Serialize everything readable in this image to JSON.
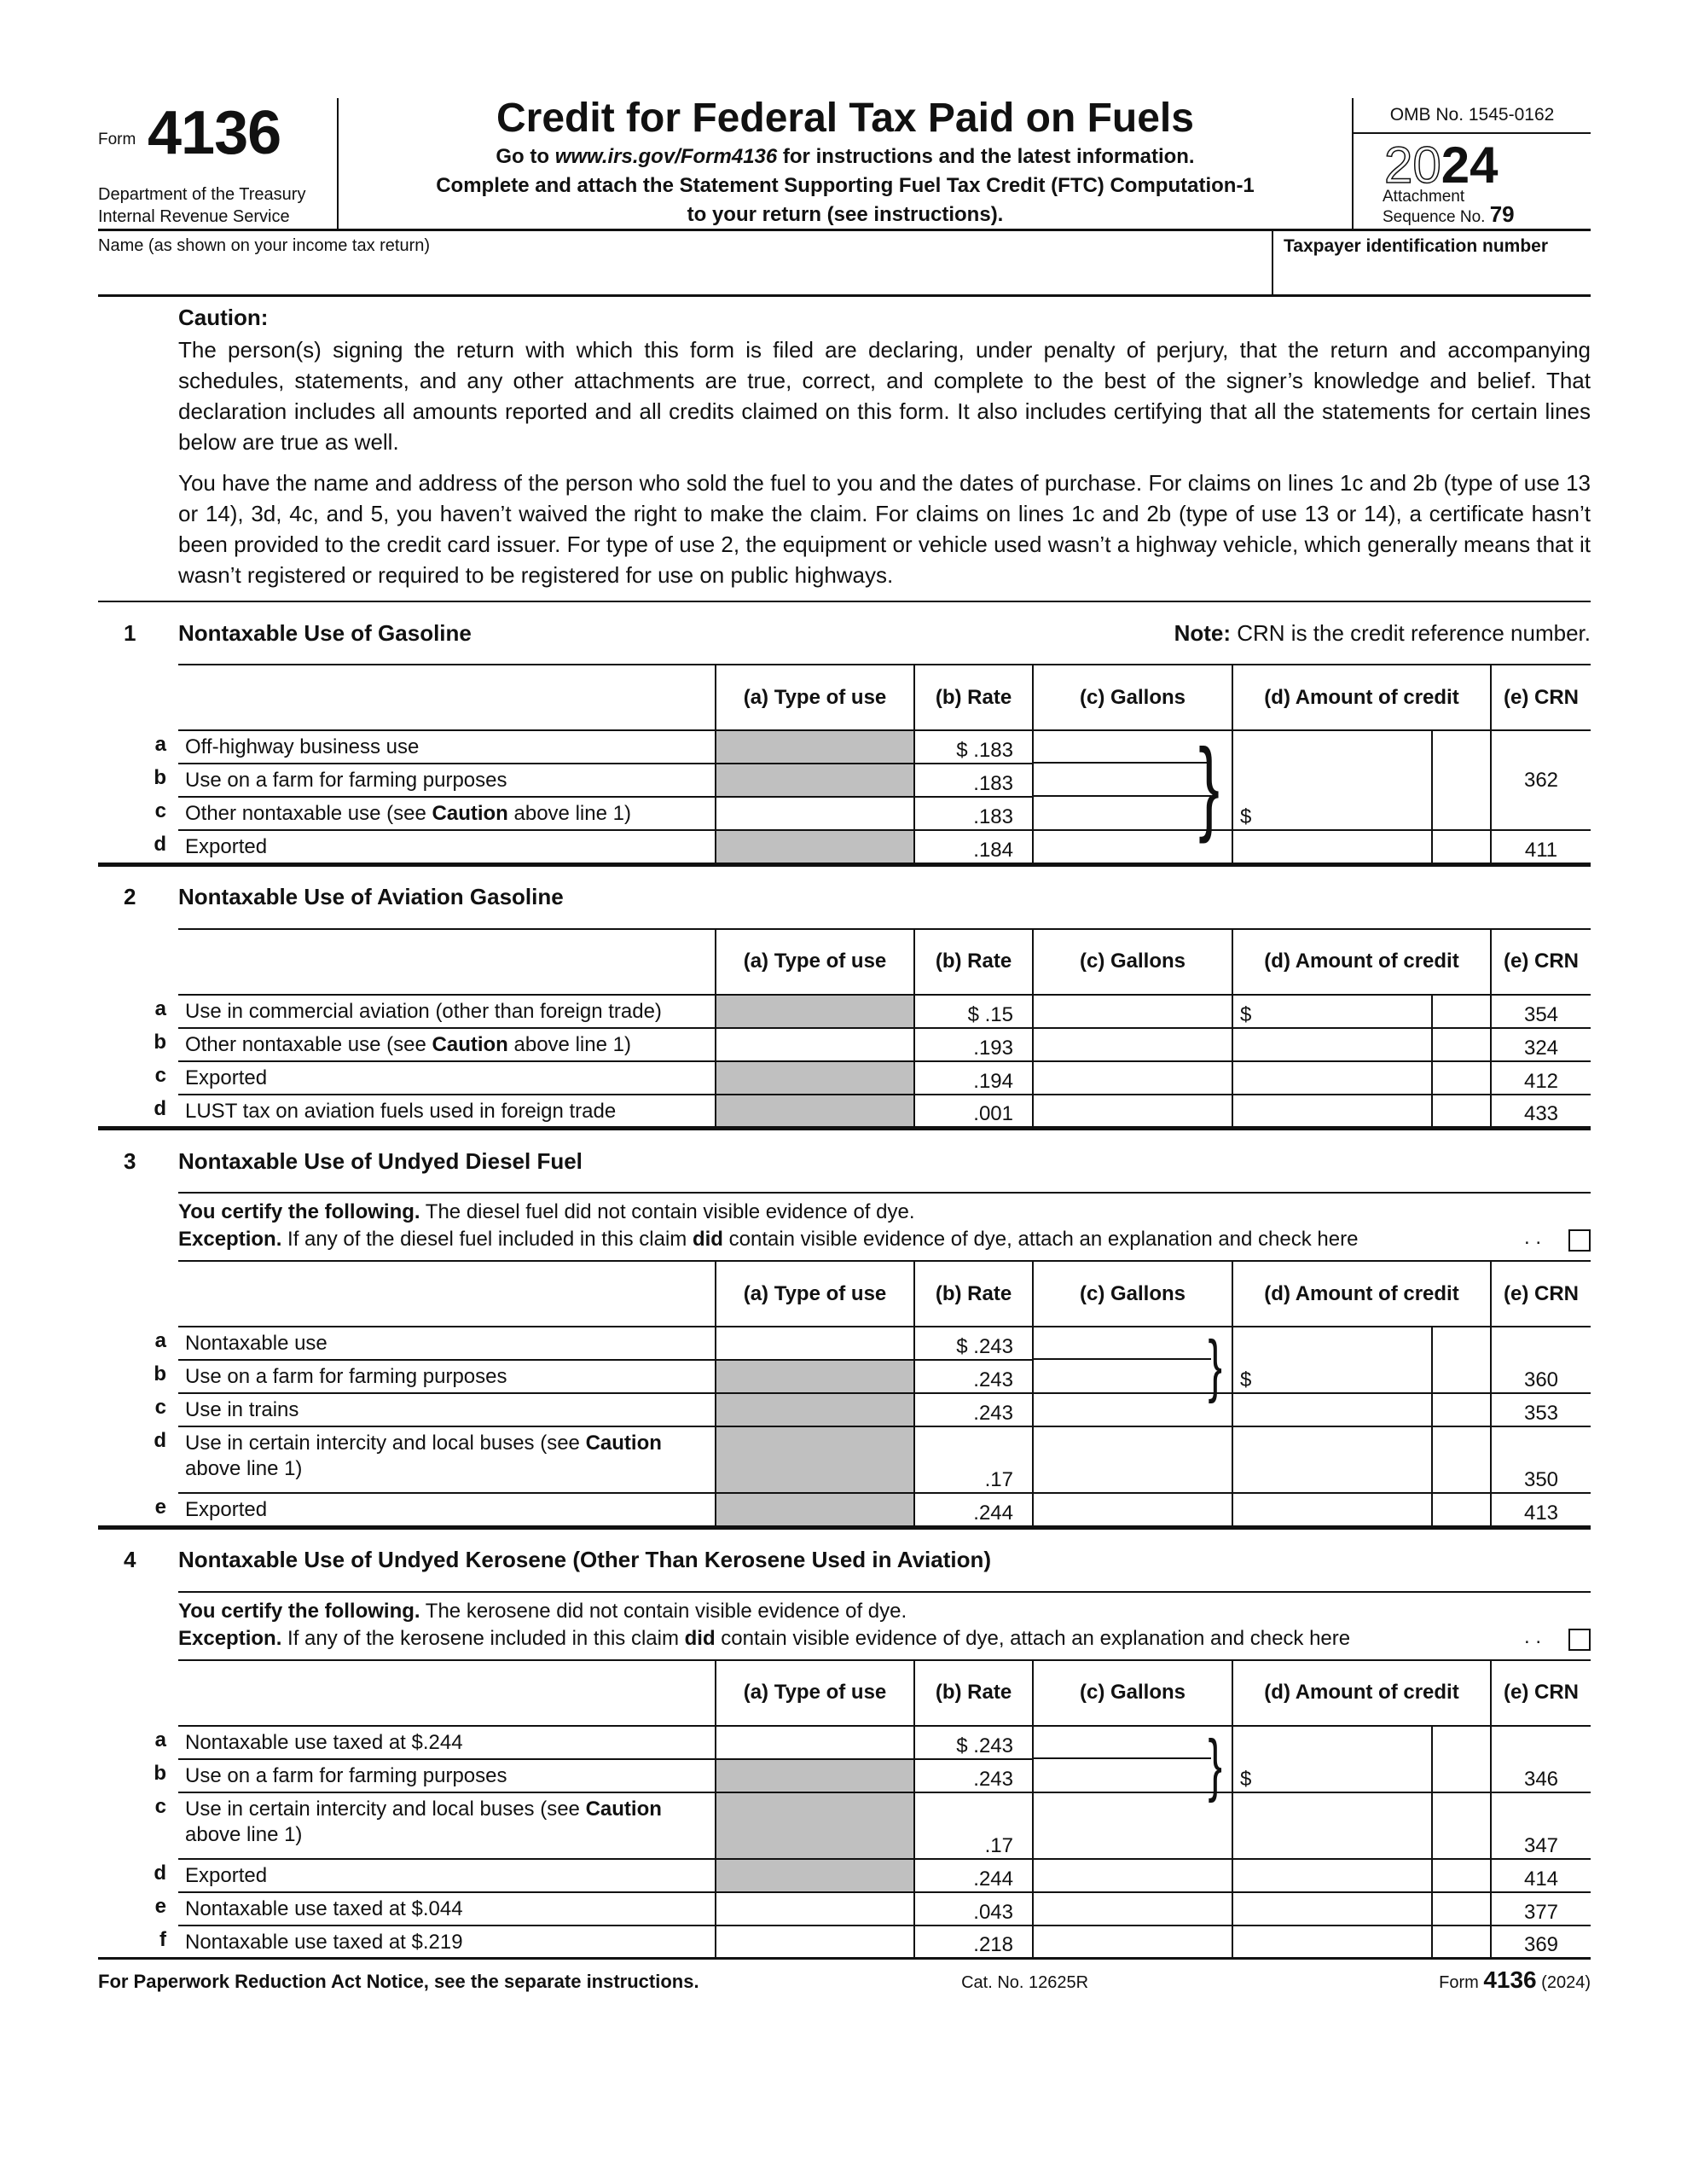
{
  "header": {
    "form_word": "Form",
    "form_number": "4136",
    "dept_line1": "Department of the Treasury",
    "dept_line2": "Internal Revenue Service",
    "title": "Credit for Federal Tax Paid on Fuels",
    "goto_prefix": "Go to ",
    "goto_url": "www.irs.gov/Form4136",
    "goto_suffix": " for instructions and the latest information.",
    "attach_line1": "Complete and attach the Statement Supporting Fuel Tax Credit (FTC) Computation-1",
    "attach_line2": "to your return (see instructions).",
    "omb": "OMB No. 1545-0162",
    "year_outline": "20",
    "year_bold": "24",
    "attachment": "Attachment",
    "sequence_label": "Sequence No.",
    "sequence_no": "79"
  },
  "name_row": {
    "name_label": "Name (as shown on your income tax return)",
    "name_value": "",
    "tin_label": "Taxpayer identification number",
    "tin_value": ""
  },
  "caution": {
    "heading": "Caution:",
    "para1": "The person(s) signing the return with which this form is filed are declaring, under penalty of perjury, that the return and accompanying schedules, statements, and any other attachments are true, correct, and complete to the best of the signer’s knowledge and belief. That declaration includes all amounts reported and all credits claimed on this form. It also includes certifying that all the statements for certain lines below are true as well.",
    "para2": "You have the name and address of the person who sold the fuel to you and the dates of purchase. For claims on lines 1c and 2b (type of use 13 or 14), 3d, 4c, and 5, you haven’t waived the right to make the claim. For claims on lines 1c and 2b (type of use 13 or 14), a certificate hasn’t been provided to the credit card issuer. For type of use 2, the equipment or vehicle used wasn’t a highway vehicle, which generally means that it wasn’t registered or required to be registered for use on public highways."
  },
  "columns": [
    "(a) Type of use",
    "(b) Rate",
    "(c) Gallons",
    "(d) Amount of credit",
    "(e) CRN"
  ],
  "note": {
    "bold": "Note:",
    "text": " CRN is the credit reference number."
  },
  "sections": [
    {
      "number": "1",
      "title": "Nontaxable Use of Gasoline",
      "group": {
        "start": 0,
        "end": 2,
        "crn": "362",
        "crn_align": "middle"
      },
      "rows": [
        {
          "letter": "a",
          "desc": [
            {
              "t": "Off-highway business use"
            }
          ],
          "shaded": true,
          "rate": "$ .183",
          "crn": "362"
        },
        {
          "letter": "b",
          "desc": [
            {
              "t": "Use on a farm for farming purposes"
            }
          ],
          "shaded": true,
          "rate": ".183",
          "crn": "362"
        },
        {
          "letter": "c",
          "desc": [
            {
              "t": "Other nontaxable use (see "
            },
            {
              "t": "Caution",
              "b": true
            },
            {
              "t": " above line 1)"
            }
          ],
          "shaded": false,
          "rate": ".183",
          "crn": "362"
        },
        {
          "letter": "d",
          "desc": [
            {
              "t": "Exported"
            }
          ],
          "shaded": true,
          "rate": ".184",
          "crn": "411"
        }
      ]
    },
    {
      "number": "2",
      "title": "Nontaxable Use of Aviation Gasoline",
      "rows": [
        {
          "letter": "a",
          "desc": [
            {
              "t": "Use in commercial aviation (other than foreign trade)"
            }
          ],
          "shaded": true,
          "rate": "$ .15",
          "crn": "354",
          "dollar": "$"
        },
        {
          "letter": "b",
          "desc": [
            {
              "t": "Other nontaxable use (see "
            },
            {
              "t": "Caution",
              "b": true
            },
            {
              "t": " above line 1)"
            }
          ],
          "shaded": false,
          "rate": ".193",
          "crn": "324"
        },
        {
          "letter": "c",
          "desc": [
            {
              "t": "Exported"
            }
          ],
          "shaded": true,
          "rate": ".194",
          "crn": "412"
        },
        {
          "letter": "d",
          "desc": [
            {
              "t": "LUST tax on aviation fuels used in foreign trade"
            }
          ],
          "shaded": true,
          "rate": ".001",
          "crn": "433"
        }
      ]
    },
    {
      "number": "3",
      "title": "Nontaxable Use of Undyed Diesel Fuel",
      "certify": {
        "bold": "You certify the following.",
        "text": " The diesel fuel did not contain visible evidence of dye."
      },
      "exception": {
        "bold": "Exception.",
        "pre": " If any of the diesel fuel included in this claim ",
        "did": "did",
        "post": " contain visible evidence of dye, attach an explanation and check here",
        "dots": ". .",
        "checked": false
      },
      "group": {
        "start": 0,
        "end": 1,
        "crn": "360",
        "crn_align": "bottom"
      },
      "rows": [
        {
          "letter": "a",
          "desc": [
            {
              "t": "Nontaxable use"
            }
          ],
          "shaded": false,
          "rate": "$ .243",
          "crn": "360"
        },
        {
          "letter": "b",
          "desc": [
            {
              "t": "Use on a farm for farming purposes"
            }
          ],
          "shaded": true,
          "rate": ".243",
          "crn": "360"
        },
        {
          "letter": "c",
          "desc": [
            {
              "t": "Use in trains"
            }
          ],
          "shaded": true,
          "rate": ".243",
          "crn": "353"
        },
        {
          "letter": "d",
          "desc": [
            {
              "t": "Use in certain intercity and local buses (see "
            },
            {
              "t": "Caution",
              "b": true
            },
            {
              "t": " above line 1)"
            }
          ],
          "shaded": true,
          "rate": ".17",
          "crn": "350",
          "tall": true
        },
        {
          "letter": "e",
          "desc": [
            {
              "t": "Exported"
            }
          ],
          "shaded": true,
          "rate": ".244",
          "crn": "413"
        }
      ]
    },
    {
      "number": "4",
      "title": "Nontaxable Use of Undyed Kerosene (Other Than Kerosene Used in Aviation)",
      "certify": {
        "bold": "You certify the following.",
        "text": " The kerosene did not contain visible evidence of dye."
      },
      "exception": {
        "bold": "Exception.",
        "pre": " If any of the kerosene included in this claim ",
        "did": "did",
        "post": " contain visible evidence of dye, attach an explanation and check here",
        "dots": ". .",
        "checked": false
      },
      "group": {
        "start": 0,
        "end": 1,
        "crn": "346",
        "crn_align": "bottom"
      },
      "rows": [
        {
          "letter": "a",
          "desc": [
            {
              "t": "Nontaxable use taxed at $.244"
            }
          ],
          "shaded": false,
          "rate": "$ .243",
          "crn": "346"
        },
        {
          "letter": "b",
          "desc": [
            {
              "t": "Use on a farm for farming purposes"
            }
          ],
          "shaded": true,
          "rate": ".243",
          "crn": "346"
        },
        {
          "letter": "c",
          "desc": [
            {
              "t": "Use in certain intercity and local buses (see "
            },
            {
              "t": "Caution",
              "b": true
            },
            {
              "t": " above line 1)"
            }
          ],
          "shaded": true,
          "rate": ".17",
          "crn": "347",
          "tall": true
        },
        {
          "letter": "d",
          "desc": [
            {
              "t": "Exported"
            }
          ],
          "shaded": true,
          "rate": ".244",
          "crn": "414"
        },
        {
          "letter": "e",
          "desc": [
            {
              "t": "Nontaxable use taxed at $.044"
            }
          ],
          "shaded": false,
          "rate": ".043",
          "crn": "377"
        },
        {
          "letter": "f",
          "desc": [
            {
              "t": "Nontaxable use taxed at $.219"
            }
          ],
          "shaded": false,
          "rate": ".218",
          "crn": "369"
        }
      ]
    }
  ],
  "footer": {
    "paperwork": "For Paperwork Reduction Act Notice, see the separate instructions.",
    "cat_no": "Cat. No. 12625R",
    "form_word": "Form ",
    "form_number": "4136",
    "form_year": " (2024)"
  },
  "colors": {
    "shade": "#c0c0c0",
    "rule": "#111111"
  }
}
